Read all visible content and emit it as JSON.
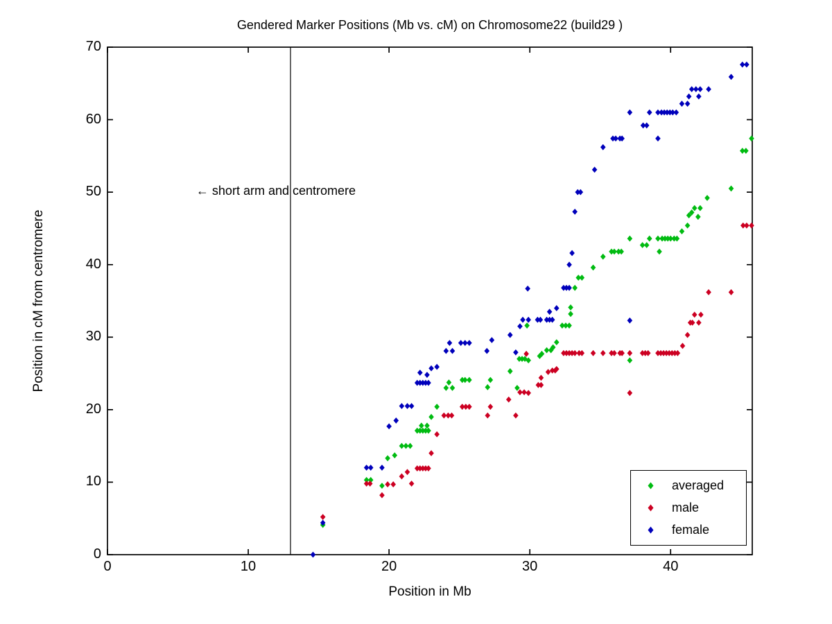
{
  "chart_data": {
    "type": "scatter",
    "title": "Gendered Marker Positions (Mb vs. cM) on Chromosome22 (build29 )",
    "xlabel": "Position in Mb",
    "ylabel": "Position in cM from centromere",
    "xlim": [
      0,
      45.8
    ],
    "ylim": [
      0,
      70
    ],
    "x_ticks": [
      0,
      10,
      20,
      30,
      40
    ],
    "y_ticks": [
      0,
      10,
      20,
      30,
      40,
      50,
      60,
      70
    ],
    "grid": false,
    "marker": "diamond",
    "vline_x_mb": 13,
    "annotation": {
      "text": "← short arm and centromere",
      "x_mb": 6.3,
      "y_cm": 50
    },
    "legend": {
      "position": "lower right"
    },
    "series": [
      {
        "name": "averaged",
        "color": "#00bb11",
        "points": [
          [
            15.3,
            4.1
          ],
          [
            18.4,
            10.3
          ],
          [
            18.7,
            10.3
          ],
          [
            19.5,
            9.5
          ],
          [
            19.9,
            13.3
          ],
          [
            20.4,
            13.7
          ],
          [
            20.9,
            15.0
          ],
          [
            21.2,
            15.0
          ],
          [
            21.5,
            15.0
          ],
          [
            22.0,
            17.1
          ],
          [
            22.2,
            17.1
          ],
          [
            22.4,
            17.1
          ],
          [
            22.6,
            17.1
          ],
          [
            22.8,
            17.1
          ],
          [
            22.3,
            17.8
          ],
          [
            22.7,
            17.8
          ],
          [
            23.0,
            19.0
          ],
          [
            23.4,
            20.4
          ],
          [
            24.05,
            23.0
          ],
          [
            24.5,
            23.0
          ],
          [
            24.25,
            23.75
          ],
          [
            25.2,
            24.1
          ],
          [
            25.4,
            24.1
          ],
          [
            25.7,
            24.1
          ],
          [
            27.0,
            23.1
          ],
          [
            27.2,
            24.1
          ],
          [
            28.6,
            25.3
          ],
          [
            29.1,
            23.0
          ],
          [
            29.25,
            27.0
          ],
          [
            29.45,
            27.0
          ],
          [
            29.65,
            27.0
          ],
          [
            29.9,
            26.8
          ],
          [
            29.8,
            31.6
          ],
          [
            30.7,
            27.4
          ],
          [
            30.85,
            27.7
          ],
          [
            31.2,
            28.2
          ],
          [
            31.5,
            28.2
          ],
          [
            31.65,
            28.6
          ],
          [
            31.9,
            29.3
          ],
          [
            32.3,
            31.6
          ],
          [
            32.55,
            31.6
          ],
          [
            32.8,
            31.6
          ],
          [
            32.9,
            33.2
          ],
          [
            32.9,
            34.1
          ],
          [
            33.2,
            36.8
          ],
          [
            33.45,
            38.2
          ],
          [
            33.7,
            38.2
          ],
          [
            34.5,
            39.6
          ],
          [
            35.2,
            41.1
          ],
          [
            35.8,
            41.8
          ],
          [
            36.0,
            41.8
          ],
          [
            36.3,
            41.8
          ],
          [
            36.5,
            41.8
          ],
          [
            37.1,
            26.8
          ],
          [
            37.1,
            43.6
          ],
          [
            38.0,
            42.7
          ],
          [
            38.3,
            42.7
          ],
          [
            38.5,
            43.6
          ],
          [
            39.1,
            43.6
          ],
          [
            39.2,
            41.8
          ],
          [
            39.4,
            43.6
          ],
          [
            39.6,
            43.6
          ],
          [
            39.8,
            43.6
          ],
          [
            40.0,
            43.6
          ],
          [
            40.25,
            43.6
          ],
          [
            40.45,
            43.6
          ],
          [
            40.8,
            44.6
          ],
          [
            41.2,
            45.4
          ],
          [
            41.3,
            46.8
          ],
          [
            41.5,
            47.2
          ],
          [
            41.95,
            46.6
          ],
          [
            41.7,
            47.8
          ],
          [
            42.1,
            47.8
          ],
          [
            42.6,
            49.2
          ],
          [
            44.3,
            50.5
          ],
          [
            45.1,
            55.7
          ],
          [
            45.35,
            55.7
          ],
          [
            45.75,
            57.4
          ]
        ]
      },
      {
        "name": "male",
        "color": "#cc0022",
        "points": [
          [
            15.3,
            5.2
          ],
          [
            18.4,
            9.8
          ],
          [
            18.65,
            9.8
          ],
          [
            19.5,
            8.2
          ],
          [
            19.9,
            9.7
          ],
          [
            20.3,
            9.7
          ],
          [
            21.6,
            9.8
          ],
          [
            20.9,
            10.8
          ],
          [
            21.3,
            11.4
          ],
          [
            22.0,
            11.9
          ],
          [
            22.2,
            11.9
          ],
          [
            22.4,
            11.9
          ],
          [
            22.6,
            11.9
          ],
          [
            22.8,
            11.9
          ],
          [
            23.0,
            14.0
          ],
          [
            23.4,
            16.6
          ],
          [
            23.9,
            19.2
          ],
          [
            24.2,
            19.2
          ],
          [
            24.45,
            19.2
          ],
          [
            25.2,
            20.4
          ],
          [
            25.45,
            20.4
          ],
          [
            25.7,
            20.4
          ],
          [
            27.0,
            19.2
          ],
          [
            27.2,
            20.4
          ],
          [
            28.5,
            21.4
          ],
          [
            29.0,
            19.2
          ],
          [
            29.3,
            22.4
          ],
          [
            29.6,
            22.4
          ],
          [
            29.9,
            22.3
          ],
          [
            29.75,
            27.7
          ],
          [
            30.6,
            23.4
          ],
          [
            30.8,
            23.4
          ],
          [
            30.8,
            24.4
          ],
          [
            31.3,
            25.2
          ],
          [
            31.6,
            25.4
          ],
          [
            31.8,
            25.4
          ],
          [
            31.9,
            25.6
          ],
          [
            32.4,
            27.8
          ],
          [
            32.6,
            27.8
          ],
          [
            32.8,
            27.8
          ],
          [
            33.0,
            27.8
          ],
          [
            33.2,
            27.8
          ],
          [
            33.5,
            27.8
          ],
          [
            33.7,
            27.8
          ],
          [
            34.5,
            27.8
          ],
          [
            35.2,
            27.8
          ],
          [
            35.8,
            27.8
          ],
          [
            36.0,
            27.8
          ],
          [
            36.4,
            27.8
          ],
          [
            36.55,
            27.8
          ],
          [
            37.1,
            27.8
          ],
          [
            37.1,
            22.3
          ],
          [
            38.0,
            27.8
          ],
          [
            38.2,
            27.8
          ],
          [
            38.4,
            27.8
          ],
          [
            39.1,
            27.8
          ],
          [
            39.3,
            27.8
          ],
          [
            39.5,
            27.8
          ],
          [
            39.7,
            27.8
          ],
          [
            39.9,
            27.8
          ],
          [
            40.1,
            27.8
          ],
          [
            40.3,
            27.8
          ],
          [
            40.5,
            27.8
          ],
          [
            40.85,
            28.8
          ],
          [
            41.2,
            30.3
          ],
          [
            41.4,
            32.0
          ],
          [
            41.55,
            32.0
          ],
          [
            42.0,
            32.0
          ],
          [
            41.7,
            33.1
          ],
          [
            42.15,
            33.1
          ],
          [
            42.7,
            36.2
          ],
          [
            44.3,
            36.2
          ],
          [
            45.15,
            45.4
          ],
          [
            45.4,
            45.4
          ],
          [
            45.75,
            45.4
          ]
        ]
      },
      {
        "name": "female",
        "color": "#0000bb",
        "points": [
          [
            14.6,
            0.0
          ],
          [
            15.3,
            4.4
          ],
          [
            18.4,
            12.0
          ],
          [
            18.7,
            12.0
          ],
          [
            19.5,
            12.0
          ],
          [
            20.0,
            17.7
          ],
          [
            20.5,
            18.5
          ],
          [
            20.9,
            20.5
          ],
          [
            21.3,
            20.5
          ],
          [
            21.6,
            20.5
          ],
          [
            22.0,
            23.7
          ],
          [
            22.2,
            23.7
          ],
          [
            22.4,
            23.7
          ],
          [
            22.6,
            23.7
          ],
          [
            22.8,
            23.7
          ],
          [
            22.2,
            25.1
          ],
          [
            22.7,
            24.8
          ],
          [
            23.0,
            25.7
          ],
          [
            23.4,
            25.9
          ],
          [
            24.05,
            28.1
          ],
          [
            24.5,
            28.1
          ],
          [
            24.3,
            29.2
          ],
          [
            25.1,
            29.2
          ],
          [
            25.4,
            29.2
          ],
          [
            25.7,
            29.2
          ],
          [
            26.95,
            28.1
          ],
          [
            27.3,
            29.6
          ],
          [
            28.6,
            30.3
          ],
          [
            29.0,
            27.9
          ],
          [
            29.3,
            31.5
          ],
          [
            29.5,
            32.4
          ],
          [
            29.9,
            32.4
          ],
          [
            30.55,
            32.4
          ],
          [
            30.75,
            32.4
          ],
          [
            31.2,
            32.4
          ],
          [
            31.4,
            32.4
          ],
          [
            31.6,
            32.4
          ],
          [
            29.85,
            36.7
          ],
          [
            31.4,
            33.5
          ],
          [
            31.9,
            34.0
          ],
          [
            32.4,
            36.8
          ],
          [
            32.6,
            36.8
          ],
          [
            32.8,
            36.8
          ],
          [
            32.8,
            40.0
          ],
          [
            33.0,
            41.6
          ],
          [
            33.2,
            47.3
          ],
          [
            33.4,
            50.0
          ],
          [
            33.6,
            50.0
          ],
          [
            34.6,
            53.1
          ],
          [
            35.2,
            56.2
          ],
          [
            35.9,
            57.4
          ],
          [
            36.1,
            57.4
          ],
          [
            36.4,
            57.4
          ],
          [
            36.55,
            57.4
          ],
          [
            37.1,
            32.3
          ],
          [
            37.1,
            61.0
          ],
          [
            38.5,
            61.0
          ],
          [
            39.1,
            61.0
          ],
          [
            38.05,
            59.2
          ],
          [
            38.3,
            59.2
          ],
          [
            39.1,
            57.4
          ],
          [
            39.35,
            61.0
          ],
          [
            39.55,
            61.0
          ],
          [
            39.75,
            61.0
          ],
          [
            39.95,
            61.0
          ],
          [
            40.15,
            61.0
          ],
          [
            40.4,
            61.0
          ],
          [
            40.8,
            62.2
          ],
          [
            41.2,
            62.2
          ],
          [
            41.3,
            63.2
          ],
          [
            42.0,
            63.2
          ],
          [
            41.5,
            64.2
          ],
          [
            41.8,
            64.2
          ],
          [
            42.1,
            64.2
          ],
          [
            42.7,
            64.2
          ],
          [
            44.3,
            65.9
          ],
          [
            45.1,
            67.6
          ],
          [
            45.4,
            67.6
          ]
        ]
      }
    ]
  }
}
